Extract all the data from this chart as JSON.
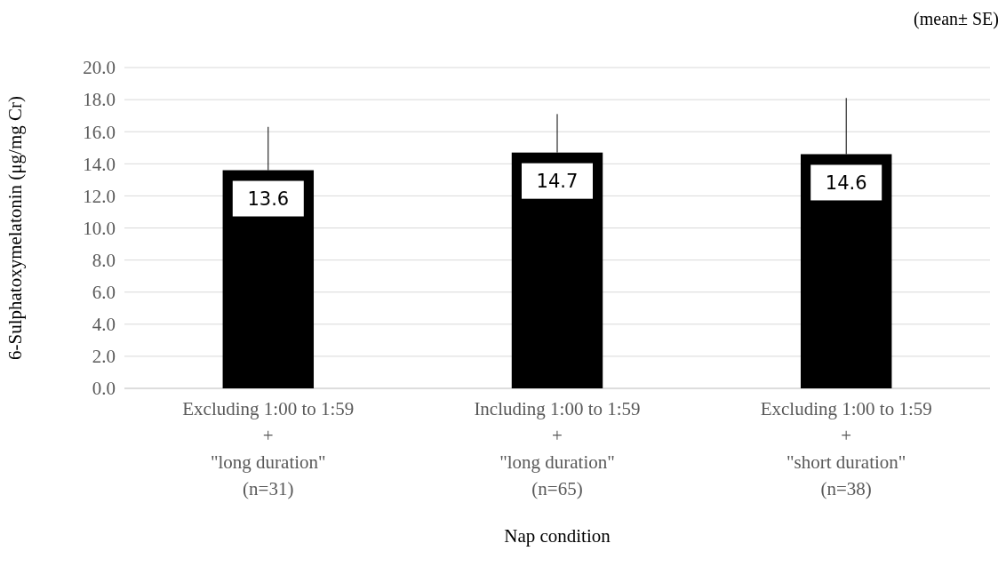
{
  "chart_data": {
    "type": "bar",
    "categories": [
      "Excluding 1:00 to 1:59\n+\n\"long duration\"\n(n=31)",
      "Including 1:00 to 1:59\n+\n\"long duration\"\n(n=65)",
      "Excluding 1:00 to 1:59\n+\n\"short duration\"\n(n=38)"
    ],
    "values": [
      13.6,
      14.7,
      14.6
    ],
    "errors": [
      [
        13.6,
        16.3
      ],
      [
        14.7,
        17.1
      ],
      [
        14.6,
        18.1
      ]
    ],
    "color": "#000000",
    "data_labels": true,
    "xlabel": "Nap condition",
    "ylabel": "6-Sulphatoxymelatonin (μg/mg Cr)",
    "annotations": [
      "(mean± SE)"
    ],
    "ylim": [
      0,
      20
    ],
    "yticks": [
      {
        "value": 0,
        "label": "0.0"
      },
      {
        "value": 2,
        "label": "2.0"
      },
      {
        "value": 4,
        "label": "4.0"
      },
      {
        "value": 6,
        "label": "6.0"
      },
      {
        "value": 8,
        "label": "8.0"
      },
      {
        "value": 10,
        "label": "10.0"
      },
      {
        "value": 12,
        "label": "12.0"
      },
      {
        "value": 14,
        "label": "14.0"
      },
      {
        "value": 16,
        "label": "16.0"
      },
      {
        "value": 18,
        "label": "18.0"
      },
      {
        "value": 20,
        "label": "20.0"
      }
    ],
    "grid": "y"
  }
}
